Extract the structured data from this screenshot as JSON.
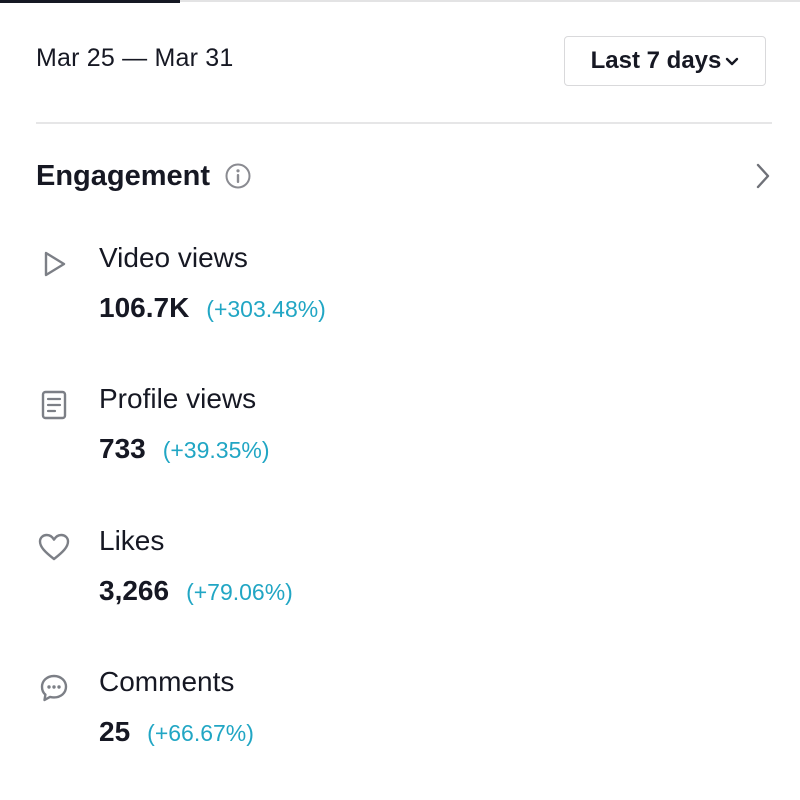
{
  "header": {
    "date_range": "Mar 25 — Mar 31",
    "range_select": {
      "label": "Last 7 days",
      "icon": "chevron-down-icon"
    }
  },
  "section": {
    "title": "Engagement",
    "info_icon": "info-icon",
    "nav_icon": "chevron-right-icon"
  },
  "metrics": [
    {
      "icon": "play-icon",
      "label": "Video views",
      "value": "106.7K",
      "change": "(+303.48%)"
    },
    {
      "icon": "profile-document-icon",
      "label": "Profile views",
      "value": "733",
      "change": "(+39.35%)"
    },
    {
      "icon": "heart-icon",
      "label": "Likes",
      "value": "3,266",
      "change": "(+79.06%)"
    },
    {
      "icon": "comment-icon",
      "label": "Comments",
      "value": "25",
      "change": "(+66.67%)"
    }
  ],
  "colors": {
    "text": "#161823",
    "positive_change": "#21a6c4",
    "divider": "#e6e6e7",
    "icon": "#7c7f86"
  }
}
